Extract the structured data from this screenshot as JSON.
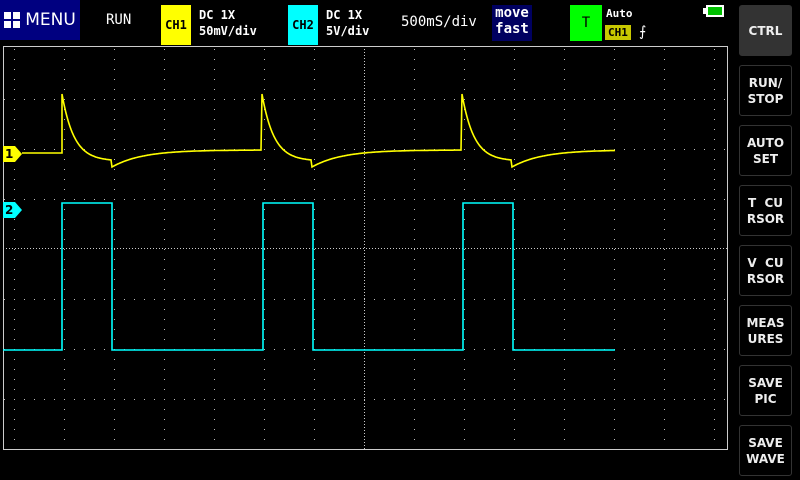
{
  "header": {
    "menu_label": "MENU",
    "run_state": "RUN",
    "ch1": {
      "label": "CH1",
      "coupling": "DC  1X",
      "scale": "50mV/div",
      "color": "#ffff00"
    },
    "ch2": {
      "label": "CH2",
      "coupling": "DC  1X",
      "scale": "5V/div",
      "color": "#00ffff"
    },
    "timebase": "500mS/div",
    "move_mode_line1": "move",
    "move_mode_line2": "fast",
    "trigger": {
      "label": "T",
      "mode": "Auto",
      "source": "CH1",
      "edge": "rising-edge-icon",
      "edge_glyph": "⨍"
    },
    "battery": "battery-icon"
  },
  "sidebar": {
    "buttons": [
      {
        "label": "CTRL"
      },
      {
        "label": "RUN/\nSTOP"
      },
      {
        "label": "AUTO\nSET"
      },
      {
        "label": "T  CU\nRSOR"
      },
      {
        "label": "V  CU\nRSOR"
      },
      {
        "label": "MEAS\nURES"
      },
      {
        "label": "SAVE\nPIC"
      },
      {
        "label": "SAVE\nWAVE"
      }
    ]
  },
  "markers": {
    "ch1": "1",
    "ch2": "2"
  }
}
